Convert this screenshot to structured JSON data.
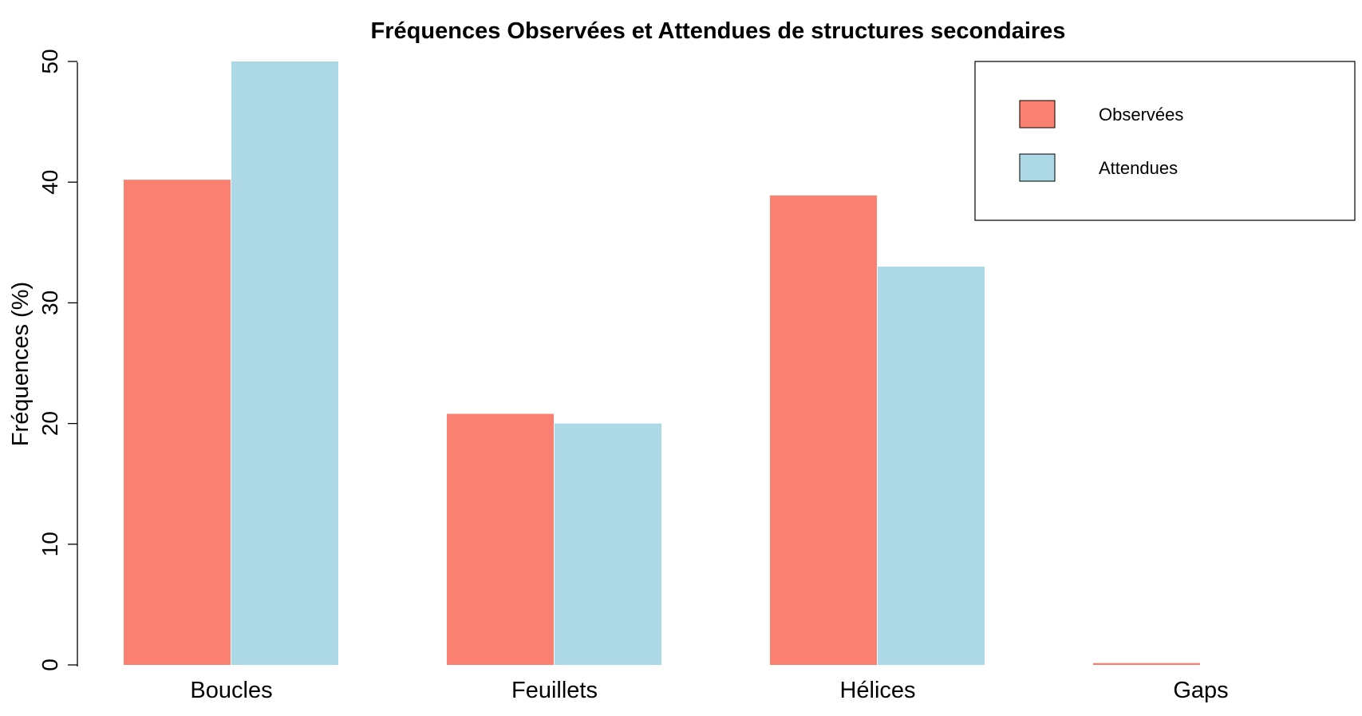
{
  "chart_data": {
    "type": "bar",
    "title": "Fréquences Observées et Attendues de structures secondaires",
    "xlabel": "",
    "ylabel": "Fréquences (%)",
    "categories": [
      "Boucles",
      "Feuillets",
      "Hélices",
      "Gaps"
    ],
    "series": [
      {
        "name": "Observées",
        "color": "#fa8072",
        "values": [
          40.2,
          20.8,
          38.9,
          0.15
        ]
      },
      {
        "name": "Attendues",
        "color": "#add8e6",
        "values": [
          50,
          20,
          33,
          0
        ]
      }
    ],
    "ylim": [
      0,
      50
    ],
    "yticks": [
      0,
      10,
      20,
      30,
      40,
      50
    ],
    "grid": false,
    "legend_position": "top-right"
  }
}
